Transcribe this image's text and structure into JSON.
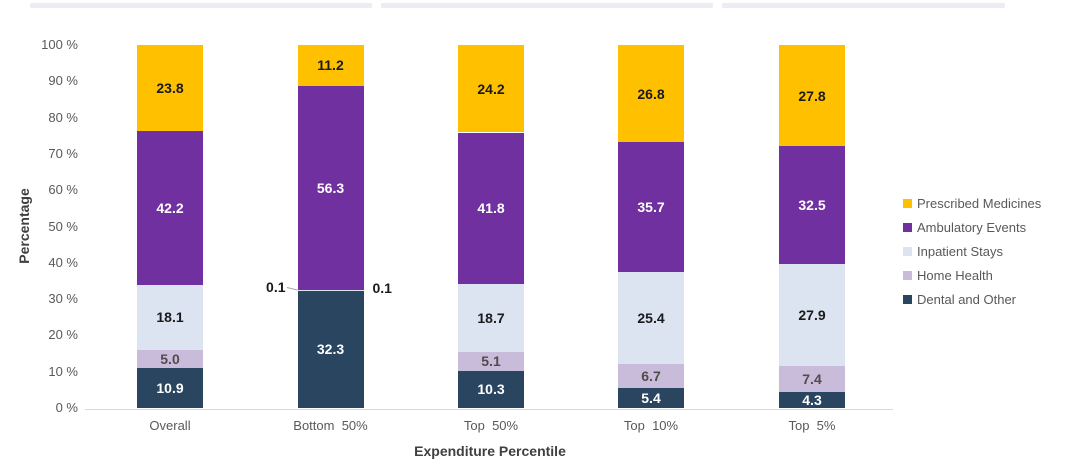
{
  "page": {
    "background": "#FFFFFF",
    "top_strip_color": "#EDECF4"
  },
  "chart_data": {
    "type": "bar",
    "variant": "stacked-column-100",
    "title": "",
    "xlabel": "Expenditure Percentile",
    "ylabel": "Percentage",
    "ylim": [
      0,
      100
    ],
    "grid": false,
    "legend_position": "right",
    "ytick_labels": [
      "0 %",
      "10 %",
      "20 %",
      "30 %",
      "40 %",
      "50 %",
      "60 %",
      "70 %",
      "80 %",
      "90 %",
      "100 %"
    ],
    "categories": [
      "Overall",
      "Bottom  50%",
      "Top  50%",
      "Top  10%",
      "Top  5%"
    ],
    "series": [
      {
        "name": "Prescribed Medicines",
        "color": "#FFC000",
        "label_color": "#1A1A1A",
        "values": [
          23.8,
          11.2,
          24.2,
          26.8,
          27.8
        ]
      },
      {
        "name": "Ambulatory Events",
        "color": "#7030A0",
        "label_color": "#FFFFFF",
        "values": [
          42.2,
          56.3,
          41.8,
          35.7,
          32.5
        ]
      },
      {
        "name": "Inpatient Stays",
        "color": "#DBE4F0",
        "label_color": "#1A1A1A",
        "values": [
          18.1,
          0.1,
          18.7,
          25.4,
          27.9
        ]
      },
      {
        "name": "Home Health",
        "color": "#C8BCDA",
        "label_color": "#4D4D4D",
        "values": [
          5.0,
          0.1,
          5.1,
          6.7,
          7.4
        ]
      },
      {
        "name": "Dental and Other",
        "color": "#2A4560",
        "label_color": "#FFFFFF",
        "values": [
          10.9,
          32.3,
          10.3,
          5.4,
          4.3
        ]
      }
    ],
    "callouts": [
      {
        "label": "0.1",
        "category": "Bottom  50%",
        "series": "Inpatient Stays",
        "side": "left"
      },
      {
        "label": "0.1",
        "category": "Bottom  50%",
        "series": "Home Health",
        "side": "right"
      }
    ]
  }
}
